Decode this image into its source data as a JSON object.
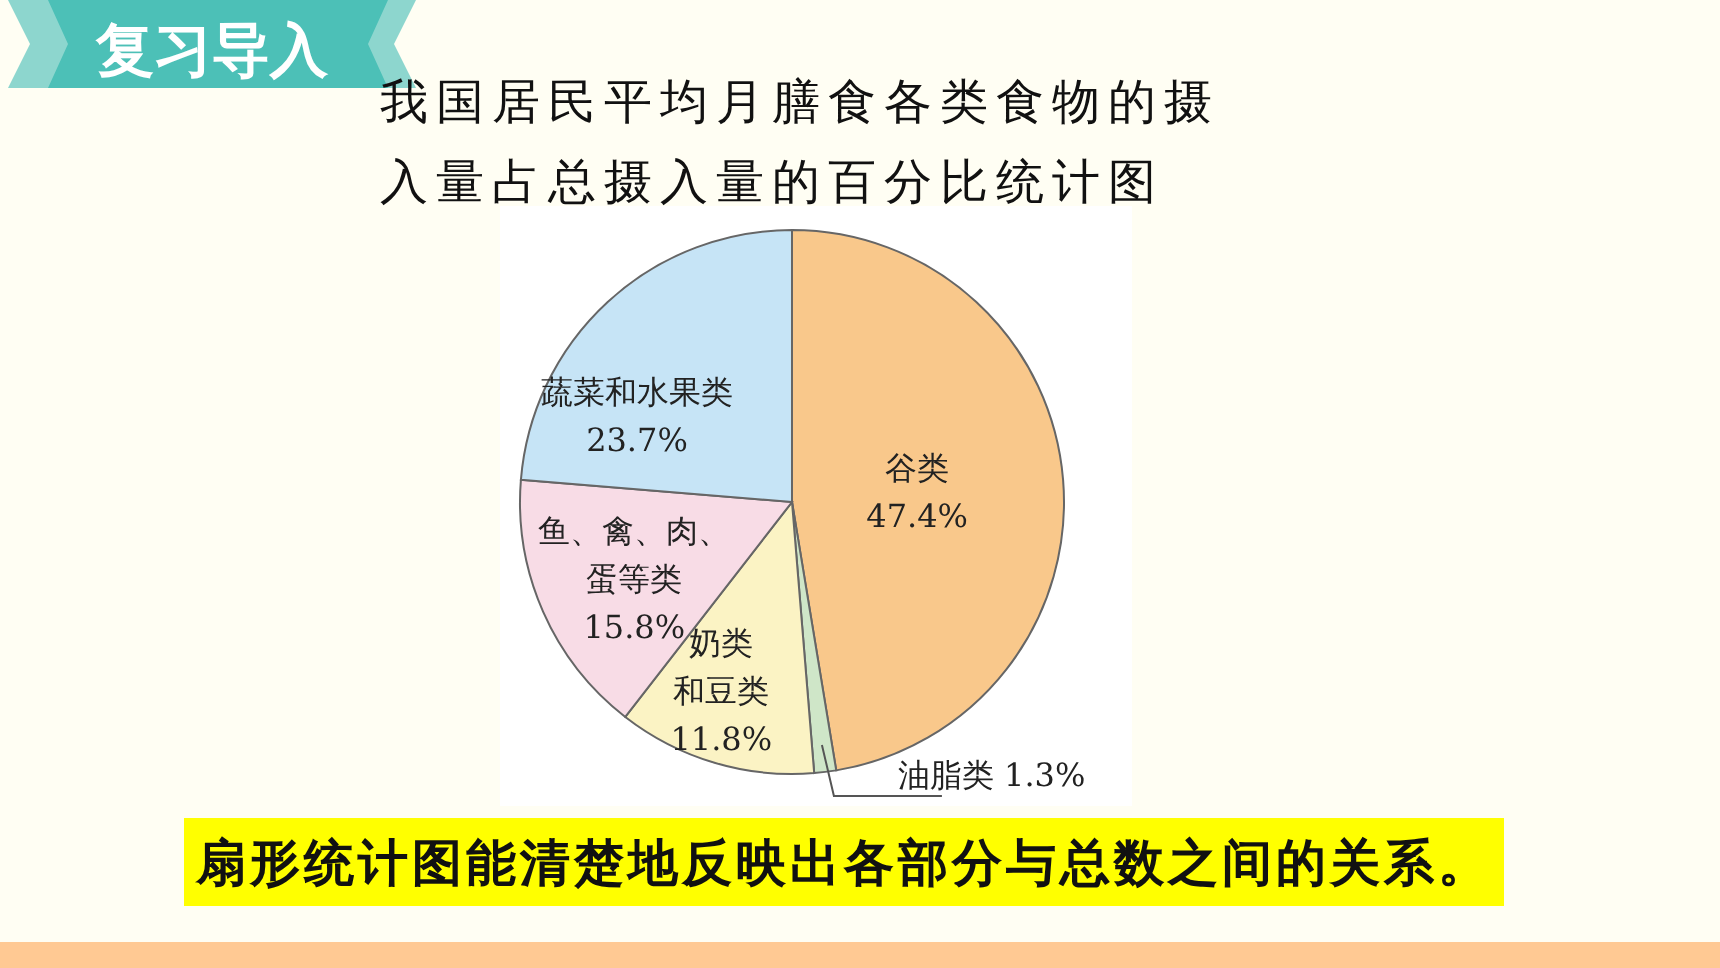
{
  "chart_data": {
    "type": "pie",
    "title": "我国居民平均月膳食各类食物的摄入量占总摄入量的百分比统计图",
    "categories": [
      "谷类",
      "油脂类",
      "奶类和豆类",
      "鱼、禽、肉、蛋等类",
      "蔬菜和水果类"
    ],
    "values": [
      47.4,
      1.3,
      11.8,
      15.8,
      23.7
    ],
    "value_labels": [
      "47.4%",
      "1.3%",
      "11.8%",
      "15.8%",
      "23.7%"
    ],
    "colors": [
      "#f9c88b",
      "#cfe6c8",
      "#fbf3c4",
      "#f8dce6",
      "#c6e4f6"
    ],
    "annotations": [
      "复习导入",
      "扇形统计图能清楚地反映出各部分与总数之间的关系。"
    ]
  }
}
